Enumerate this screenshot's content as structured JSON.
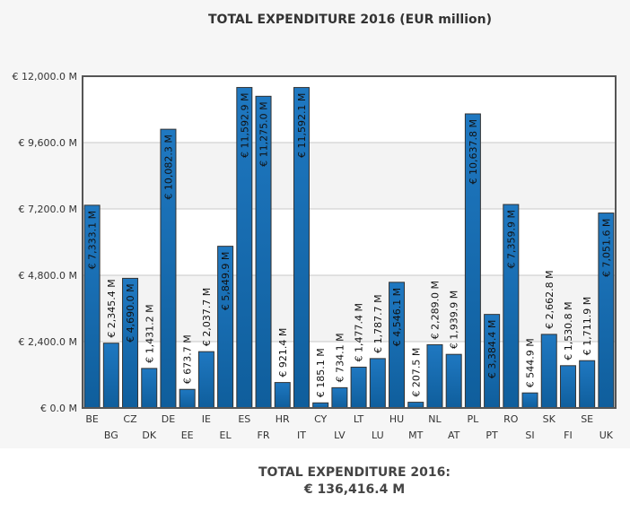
{
  "chart_data": {
    "type": "bar",
    "title": "TOTAL EXPENDITURE 2016 (EUR million)",
    "xlabel": "",
    "ylabel": "",
    "ylim": [
      0,
      12000
    ],
    "yticks": [
      0,
      2400,
      4800,
      7200,
      9600,
      12000
    ],
    "ytick_labels": [
      "€ 0.0 M",
      "€ 2,400.0 M",
      "€ 4,800.0 M",
      "€ 7,200.0 M",
      "€ 9,600.0 M",
      "€ 12,000.0 M"
    ],
    "grid": true,
    "categories": [
      "BE",
      "BG",
      "CZ",
      "DK",
      "DE",
      "EE",
      "IE",
      "EL",
      "ES",
      "FR",
      "HR",
      "IT",
      "CY",
      "LV",
      "LT",
      "LU",
      "HU",
      "MT",
      "NL",
      "AT",
      "PL",
      "PT",
      "RO",
      "SI",
      "SK",
      "FI",
      "SE",
      "UK"
    ],
    "values": [
      7333.1,
      2345.4,
      4690.0,
      1431.2,
      10082.3,
      673.7,
      2037.7,
      5849.9,
      11592.9,
      11275.0,
      921.4,
      11592.1,
      185.1,
      734.1,
      1477.4,
      1787.7,
      4546.1,
      207.5,
      2289.0,
      1939.9,
      10637.8,
      3384.4,
      7359.9,
      544.9,
      2662.8,
      1530.8,
      1711.9,
      7051.6
    ],
    "data_labels": [
      "€ 7,333.1 M",
      "€ 2,345.4 M",
      "€ 4,690.0 M",
      "€ 1,431.2 M",
      "€ 10,082.3 M",
      "€ 673.7 M",
      "€ 2,037.7 M",
      "€ 5,849.9 M",
      "€ 11,592.9 M",
      "€ 11,275.0 M",
      "€ 921.4 M",
      "€ 11,592.1 M",
      "€ 185.1 M",
      "€ 734.1 M",
      "€ 1,477.4 M",
      "€ 1,787.7 M",
      "€ 4,546.1 M",
      "€ 207.5 M",
      "€ 2,289.0 M",
      "€ 1,939.9 M",
      "€ 10,637.8 M",
      "€ 3,384.4 M",
      "€ 7,359.9 M",
      "€ 544.9 M",
      "€ 2,662.8 M",
      "€ 1,530.8 M",
      "€ 1,711.9 M",
      "€ 7,051.6 M"
    ],
    "bar_color": "#1f78c1",
    "bar_color_dark": "#0f5e9c",
    "bar_edge_color": "#333333"
  },
  "summary": {
    "label": "TOTAL EXPENDITURE 2016:",
    "value": "€ 136,416.4 M"
  }
}
